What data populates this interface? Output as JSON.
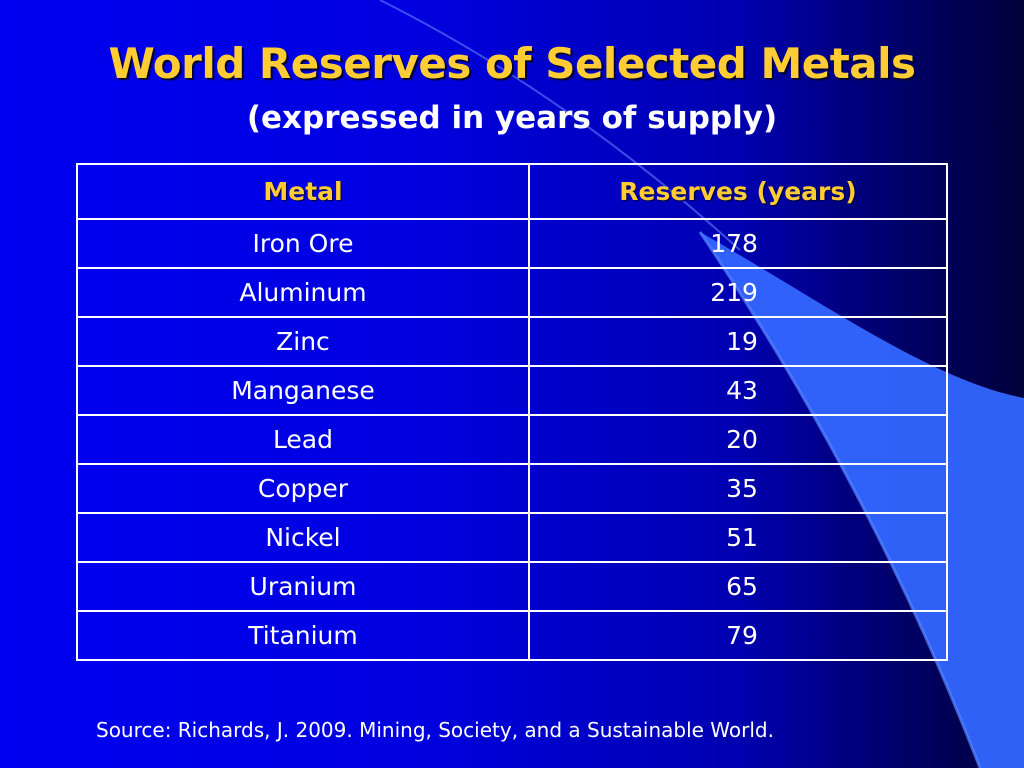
{
  "slide": {
    "title": "World Reserves of Selected Metals",
    "subtitle": "(expressed in years of supply)",
    "source": "Source: Richards, J. 2009. Mining, Society, and a Sustainable World."
  },
  "table": {
    "headers": [
      "Metal",
      "Reserves (years)"
    ],
    "rows": [
      {
        "metal": "Iron Ore",
        "years": "178"
      },
      {
        "metal": "Aluminum",
        "years": "219"
      },
      {
        "metal": "Zinc",
        "years": "19"
      },
      {
        "metal": "Manganese",
        "years": "43"
      },
      {
        "metal": "Lead",
        "years": "20"
      },
      {
        "metal": "Copper",
        "years": "35"
      },
      {
        "metal": "Nickel",
        "years": "51"
      },
      {
        "metal": "Uranium",
        "years": "65"
      },
      {
        "metal": "Titanium",
        "years": "79"
      }
    ]
  },
  "colors": {
    "background": "#0000e0",
    "title": "#ffcc33",
    "header_text": "#ffcc33",
    "body_text": "#ffffff",
    "accent_sweep": "#3366ff"
  }
}
